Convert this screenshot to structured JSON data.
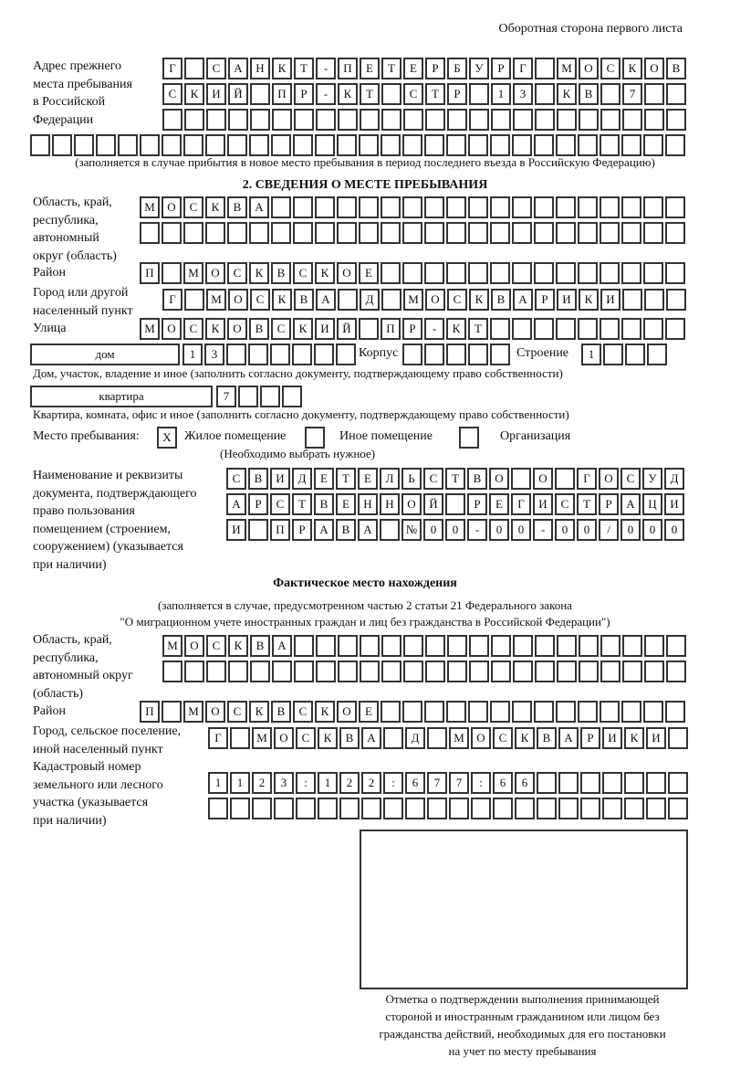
{
  "header": {
    "page_side": "Оборотная сторона первого листа"
  },
  "prev_address": {
    "label": [
      "Адрес прежнего",
      "места пребывания",
      "в Российской",
      "Федерации"
    ],
    "rows": [
      [
        "Г",
        "",
        "С",
        "А",
        "Н",
        "К",
        "Т",
        "-",
        "П",
        "Е",
        "Т",
        "Е",
        "Р",
        "Б",
        "У",
        "Р",
        "Г",
        "",
        "М",
        "О",
        "С",
        "К",
        "О",
        "В"
      ],
      [
        "С",
        "К",
        "И",
        "Й",
        "",
        "П",
        "Р",
        "-",
        "К",
        "Т",
        "",
        "С",
        "Т",
        "Р",
        "",
        "1",
        "3",
        "",
        "К",
        "В",
        "",
        "7",
        "",
        ""
      ],
      [
        "",
        "",
        "",
        "",
        "",
        "",
        "",
        "",
        "",
        "",
        "",
        "",
        "",
        "",
        "",
        "",
        "",
        "",
        "",
        "",
        "",
        "",
        "",
        ""
      ]
    ],
    "row_full": [
      "",
      "",
      "",
      "",
      "",
      "",
      "",
      "",
      "",
      "",
      "",
      "",
      "",
      "",
      "",
      "",
      "",
      "",
      "",
      "",
      "",
      "",
      "",
      "",
      "",
      "",
      "",
      "",
      "",
      ""
    ],
    "note": "(заполняется в случае прибытия в новое место пребывания в период последнего въезда в Российскую Федерацию)"
  },
  "section2": {
    "title": "2. СВЕДЕНИЯ О МЕСТЕ ПРЕБЫВАНИЯ",
    "region_label": [
      "Область, край,",
      "республика,",
      "автономный",
      "округ (область)"
    ],
    "region_rows": [
      [
        "М",
        "О",
        "С",
        "К",
        "В",
        "А",
        "",
        "",
        "",
        "",
        "",
        "",
        "",
        "",
        "",
        "",
        "",
        "",
        "",
        "",
        "",
        "",
        "",
        "",
        ""
      ],
      [
        "",
        "",
        "",
        "",
        "",
        "",
        "",
        "",
        "",
        "",
        "",
        "",
        "",
        "",
        "",
        "",
        "",
        "",
        "",
        "",
        "",
        "",
        "",
        "",
        ""
      ]
    ],
    "district_label": "Район",
    "district_row": [
      "П",
      "",
      "М",
      "О",
      "С",
      "К",
      "В",
      "С",
      "К",
      "О",
      "Е",
      "",
      "",
      "",
      "",
      "",
      "",
      "",
      "",
      "",
      "",
      "",
      "",
      "",
      ""
    ],
    "city_label": [
      "Город или другой",
      "населенный пункт"
    ],
    "city_row": [
      "Г",
      "",
      "М",
      "О",
      "С",
      "К",
      "В",
      "А",
      "",
      "Д",
      "",
      "М",
      "О",
      "С",
      "К",
      "В",
      "А",
      "Р",
      "И",
      "К",
      "И",
      "",
      "",
      ""
    ],
    "street_label": "Улица",
    "street_row": [
      "М",
      "О",
      "С",
      "К",
      "О",
      "В",
      "С",
      "К",
      "И",
      "Й",
      "",
      "П",
      "Р",
      "-",
      "К",
      "Т",
      "",
      "",
      "",
      "",
      "",
      "",
      "",
      "",
      ""
    ],
    "house_type": "дом",
    "house_cells": [
      "1",
      "3",
      "",
      "",
      "",
      "",
      "",
      ""
    ],
    "korpus_label": "Корпус",
    "korpus_cells": [
      "",
      "",
      "",
      "",
      ""
    ],
    "building_label": "Строение",
    "building_cells": [
      "1",
      "",
      "",
      ""
    ],
    "house_note": "Дом, участок, владение и иное (заполнить согласно документу, подтверждающему право собственности)",
    "flat_type": "квартира",
    "flat_cells": [
      "7",
      "",
      "",
      ""
    ],
    "flat_note": "Квартира, комната, офис и иное (заполнить согласно документу, подтверждающему право собственности)",
    "stay_place_label": "Место пребывания:",
    "stay_options": [
      {
        "label": "Жилое помещение",
        "mark": "X"
      },
      {
        "label": "Иное помещение",
        "mark": ""
      },
      {
        "label": "Организация",
        "mark": ""
      }
    ],
    "stay_note": "(Необходимо выбрать нужное)",
    "doc_label": [
      "Наименование и реквизиты",
      "документа, подтверждающего",
      "право пользования",
      "помещением (строением,",
      "сооружением) (указывается",
      "при наличии)"
    ],
    "doc_rows": [
      [
        "С",
        "В",
        "И",
        "Д",
        "Е",
        "Т",
        "Е",
        "Л",
        "Ь",
        "С",
        "Т",
        "В",
        "О",
        "",
        "О",
        "",
        "Г",
        "О",
        "С",
        "У",
        "Д"
      ],
      [
        "А",
        "Р",
        "С",
        "Т",
        "В",
        "Е",
        "Н",
        "Н",
        "О",
        "Й",
        "",
        "Р",
        "Е",
        "Г",
        "И",
        "С",
        "Т",
        "Р",
        "А",
        "Ц",
        "И"
      ],
      [
        "И",
        "",
        "П",
        "Р",
        "А",
        "В",
        "А",
        "",
        "№",
        "0",
        "0",
        "-",
        "0",
        "0",
        "-",
        "0",
        "0",
        "/",
        "0",
        "0",
        "0"
      ]
    ]
  },
  "actual": {
    "title": "Фактическое место нахождения",
    "note1": "(заполняется в случае, предусмотренном частью 2 статьи 21 Федерального закона",
    "note2": "\"О миграционном учете иностранных граждан и лиц без гражданства в Российской Федерации\")",
    "region_label": [
      "Область, край,",
      "республика,",
      "автономный округ",
      "(область)"
    ],
    "region_rows": [
      [
        "М",
        "О",
        "С",
        "К",
        "В",
        "А",
        "",
        "",
        "",
        "",
        "",
        "",
        "",
        "",
        "",
        "",
        "",
        "",
        "",
        "",
        "",
        "",
        "",
        ""
      ],
      [
        "",
        "",
        "",
        "",
        "",
        "",
        "",
        "",
        "",
        "",
        "",
        "",
        "",
        "",
        "",
        "",
        "",
        "",
        "",
        "",
        "",
        "",
        "",
        ""
      ]
    ],
    "district_label": "Район",
    "district_row": [
      "П",
      "",
      "М",
      "О",
      "С",
      "К",
      "В",
      "С",
      "К",
      "О",
      "Е",
      "",
      "",
      "",
      "",
      "",
      "",
      "",
      "",
      "",
      "",
      "",
      "",
      "",
      ""
    ],
    "city_label": [
      "Город, сельское поселение,",
      "иной населенный пункт"
    ],
    "city_row": [
      "Г",
      "",
      "М",
      "О",
      "С",
      "К",
      "В",
      "А",
      "",
      "Д",
      "",
      "М",
      "О",
      "С",
      "К",
      "В",
      "А",
      "Р",
      "И",
      "К",
      "И",
      ""
    ],
    "cadastral_label": [
      "Кадастровый номер",
      "земельного или лесного",
      "участка (указывается",
      "при наличии)"
    ],
    "cadastral_rows": [
      [
        "1",
        "1",
        "2",
        "3",
        ":",
        "1",
        "2",
        "2",
        ":",
        "6",
        "7",
        "7",
        ":",
        "6",
        "6",
        "",
        "",
        "",
        "",
        "",
        "",
        ""
      ],
      [
        "",
        "",
        "",
        "",
        "",
        "",
        "",
        "",
        "",
        "",
        "",
        "",
        "",
        "",
        "",
        "",
        "",
        "",
        "",
        "",
        "",
        ""
      ]
    ]
  },
  "confirmation": {
    "caption": [
      "Отметка о подтверждении выполнения принимающей",
      "стороной и иностранным гражданином или лицом без",
      "гражданства действий, необходимых для его постановки",
      "на учет по месту пребывания"
    ]
  }
}
